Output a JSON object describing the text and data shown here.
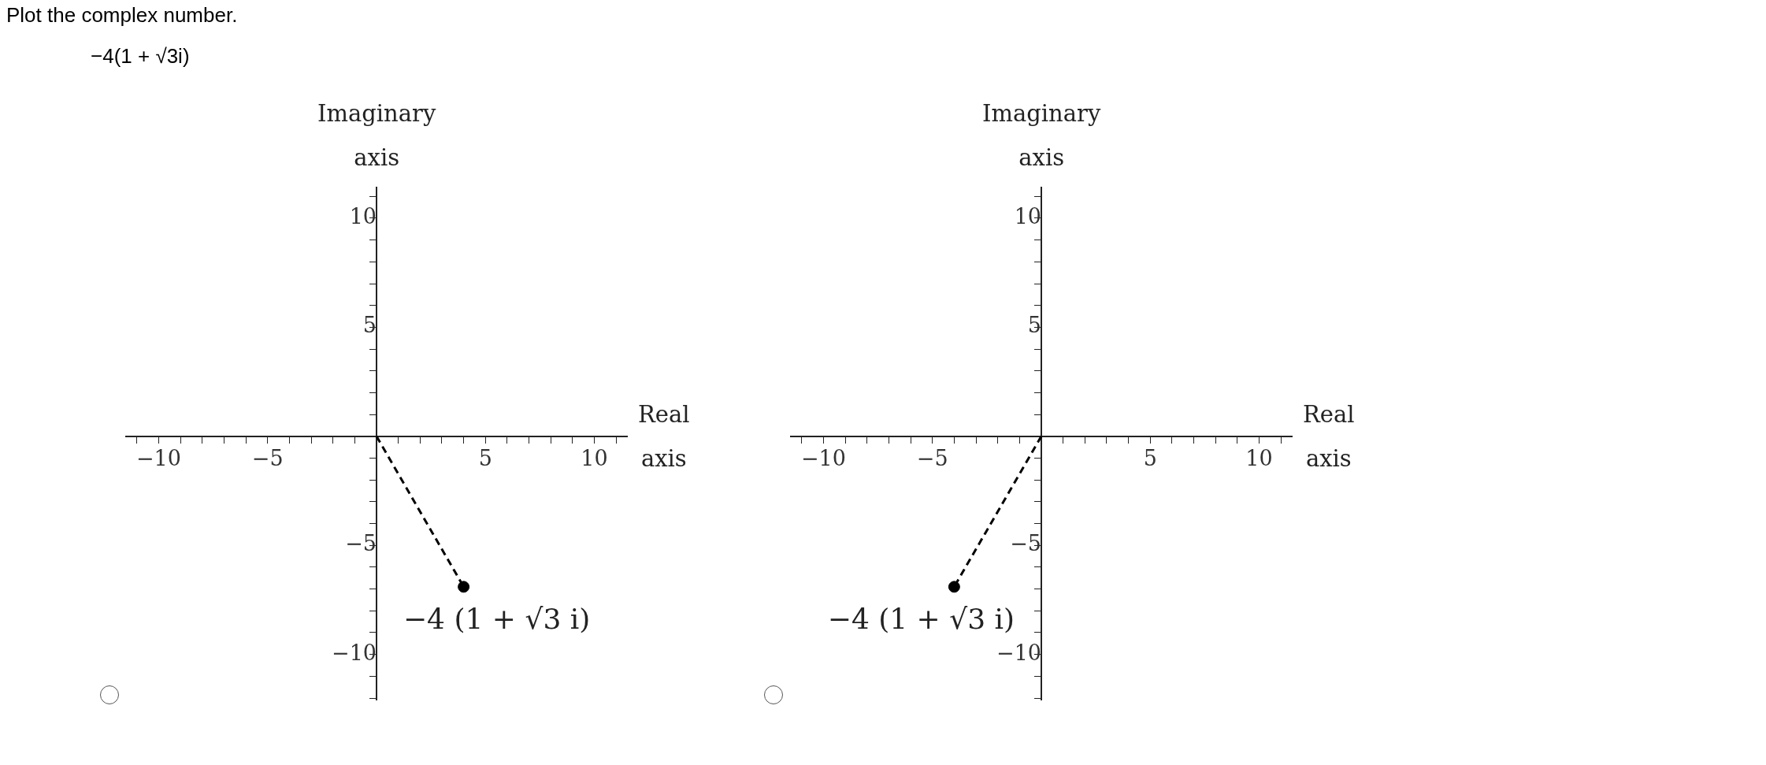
{
  "chart_data": [
    {
      "type": "line",
      "title": "Plot the complex number.",
      "subtitle": "−4(1 + √3i)",
      "xlabel": "Real axis",
      "ylabel": "Imaginary axis",
      "xlim": [
        -11.5,
        11.5
      ],
      "ylim": [
        -12.1,
        11.4
      ],
      "grid": false,
      "legend": false,
      "xticks": [
        {
          "value": -11,
          "label": null
        },
        -10,
        {
          "value": -9,
          "label": null
        },
        {
          "value": -8,
          "label": null
        },
        {
          "value": -7,
          "label": null
        },
        {
          "value": -6,
          "label": null
        },
        -5,
        {
          "value": -4,
          "label": null
        },
        {
          "value": -3,
          "label": null
        },
        {
          "value": -2,
          "label": null
        },
        {
          "value": -1,
          "label": null
        },
        {
          "value": 1,
          "label": null
        },
        {
          "value": 2,
          "label": null
        },
        {
          "value": 3,
          "label": null
        },
        {
          "value": 4,
          "label": null
        },
        5,
        {
          "value": 6,
          "label": null
        },
        {
          "value": 7,
          "label": null
        },
        {
          "value": 8,
          "label": null
        },
        {
          "value": 9,
          "label": null
        },
        10,
        {
          "value": 11,
          "label": null
        }
      ],
      "yticks": [
        {
          "value": -12,
          "label": null
        },
        {
          "value": -11,
          "label": null
        },
        -10,
        {
          "value": -9,
          "label": null
        },
        {
          "value": -8,
          "label": null
        },
        {
          "value": -7,
          "label": null
        },
        {
          "value": -6,
          "label": null
        },
        -5,
        {
          "value": -4,
          "label": null
        },
        {
          "value": -3,
          "label": null
        },
        {
          "value": -2,
          "label": null
        },
        {
          "value": -1,
          "label": null
        },
        {
          "value": 1,
          "label": null
        },
        {
          "value": 2,
          "label": null
        },
        {
          "value": 3,
          "label": null
        },
        {
          "value": 4,
          "label": null
        },
        5,
        {
          "value": 6,
          "label": null
        },
        {
          "value": 7,
          "label": null
        },
        {
          "value": 8,
          "label": null
        },
        {
          "value": 9,
          "label": null
        },
        10,
        {
          "value": 11,
          "label": null
        }
      ],
      "series": [
        {
          "color": "#000000",
          "x": [
            0,
            4
          ],
          "values": [
            0,
            -6.9
          ],
          "marker": "none",
          "line_style": "dashed"
        },
        {
          "type": "scatter",
          "color": "#000000",
          "x": [
            4
          ],
          "values": [
            -6.9
          ],
          "marker": "circle"
        }
      ],
      "annotations": [
        {
          "text": "−4 (1 + √3 i)",
          "x": 4,
          "y": -6.9
        }
      ]
    },
    {
      "type": "line",
      "xlabel": "Real axis",
      "ylabel": "Imaginary axis",
      "xlim": [
        -11.5,
        11.5
      ],
      "ylim": [
        -12.1,
        11.4
      ],
      "grid": false,
      "legend": false,
      "xticks": [
        {
          "value": -11,
          "label": null
        },
        -10,
        {
          "value": -9,
          "label": null
        },
        {
          "value": -8,
          "label": null
        },
        {
          "value": -7,
          "label": null
        },
        {
          "value": -6,
          "label": null
        },
        -5,
        {
          "value": -4,
          "label": null
        },
        {
          "value": -3,
          "label": null
        },
        {
          "value": -2,
          "label": null
        },
        {
          "value": -1,
          "label": null
        },
        {
          "value": 1,
          "label": null
        },
        {
          "value": 2,
          "label": null
        },
        {
          "value": 3,
          "label": null
        },
        {
          "value": 4,
          "label": null
        },
        5,
        {
          "value": 6,
          "label": null
        },
        {
          "value": 7,
          "label": null
        },
        {
          "value": 8,
          "label": null
        },
        {
          "value": 9,
          "label": null
        },
        10,
        {
          "value": 11,
          "label": null
        }
      ],
      "yticks": [
        {
          "value": -12,
          "label": null
        },
        {
          "value": -11,
          "label": null
        },
        -10,
        {
          "value": -9,
          "label": null
        },
        {
          "value": -8,
          "label": null
        },
        {
          "value": -7,
          "label": null
        },
        {
          "value": -6,
          "label": null
        },
        -5,
        {
          "value": -4,
          "label": null
        },
        {
          "value": -3,
          "label": null
        },
        {
          "value": -2,
          "label": null
        },
        {
          "value": -1,
          "label": null
        },
        {
          "value": 1,
          "label": null
        },
        {
          "value": 2,
          "label": null
        },
        {
          "value": 3,
          "label": null
        },
        {
          "value": 4,
          "label": null
        },
        5,
        {
          "value": 6,
          "label": null
        },
        {
          "value": 7,
          "label": null
        },
        {
          "value": 8,
          "label": null
        },
        {
          "value": 9,
          "label": null
        },
        10,
        {
          "value": 11,
          "label": null
        }
      ],
      "series": [
        {
          "color": "#000000",
          "x": [
            0,
            -4
          ],
          "values": [
            0,
            -6.9
          ],
          "marker": "none",
          "line_style": "dashed"
        },
        {
          "type": "scatter",
          "color": "#000000",
          "x": [
            -4
          ],
          "values": [
            -6.9
          ],
          "marker": "circle"
        }
      ],
      "annotations": [
        {
          "text": "−4 (1 + √3 i)",
          "x": -4,
          "y": -6.9
        }
      ]
    }
  ]
}
